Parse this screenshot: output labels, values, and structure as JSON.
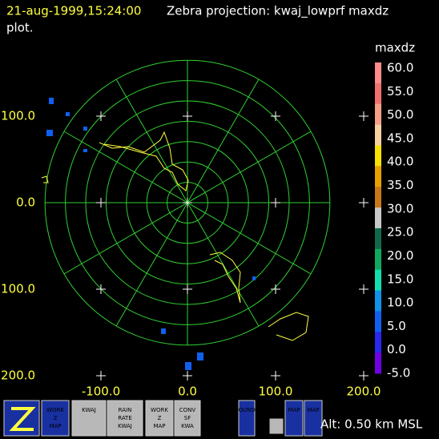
{
  "header": {
    "time": "21-aug-1999,15:24:00",
    "title": "Zebra projection: kwaj_lowprf maxdz",
    "title_cont": "plot."
  },
  "y_labels": [
    "100.0",
    "0.0",
    "100.0",
    "200.0"
  ],
  "x_labels": [
    "-100.0",
    "0.0",
    "100.0",
    "200.0"
  ],
  "scale": {
    "title": "maxdz",
    "labels": [
      "60.0",
      "55.0",
      "50.0",
      "45.0",
      "40.0",
      "35.0",
      "30.0",
      "25.0",
      "20.0",
      "15.0",
      "10.0",
      "5.0",
      "0.0",
      "-5.0"
    ],
    "colors": [
      "#ff8c8c",
      "#f07070",
      "#f4a088",
      "#f8d0a0",
      "#f8e000",
      "#e8a000",
      "#c87818",
      "#c8c8c8",
      "#106848",
      "#10a860",
      "#10e0b0",
      "#1090e8",
      "#1060f0",
      "#2828f0",
      "#7000e0"
    ]
  },
  "toolbar": {
    "icons": [
      [
        "WORK",
        "Z",
        "MAP"
      ],
      [
        "KWAJ"
      ],
      [
        "RAIN",
        "RATE",
        "KWAJ"
      ],
      [
        "WORK",
        "Z",
        "MAP"
      ],
      [
        "CONV",
        "SF",
        "KWA"
      ],
      [
        "BOUNDS"
      ],
      [
        "MAP"
      ],
      [
        "MAP"
      ]
    ]
  },
  "altitude": "Alt: 0.50 km MSL"
}
